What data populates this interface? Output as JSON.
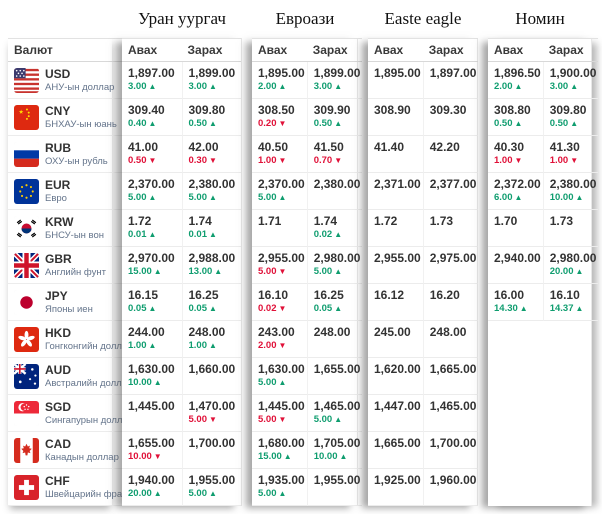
{
  "columns": {
    "currency": "Валют",
    "buy": "Авах",
    "sell": "Зарах"
  },
  "exchanges": [
    {
      "name": "Уран уургач"
    },
    {
      "name": "Евроази"
    },
    {
      "name": "Easte eagle"
    },
    {
      "name": "Номин"
    }
  ],
  "colors": {
    "up": "#0f9d6f",
    "down": "#e01038",
    "price": "#333333"
  },
  "rows": [
    {
      "code": "USD",
      "name": "АНУ-ын доллар",
      "flag": "us",
      "cells": [
        {
          "price": "1,897.00",
          "delta": "3.00",
          "dir": "up"
        },
        {
          "price": "1,899.00",
          "delta": "3.00",
          "dir": "up"
        },
        {
          "price": "1,895.00",
          "delta": "2.00",
          "dir": "up"
        },
        {
          "price": "1,899.00",
          "delta": "3.00",
          "dir": "up"
        },
        {
          "price": "1,895.00"
        },
        {
          "price": "1,897.00"
        },
        {
          "price": "1,896.50",
          "delta": "2.00",
          "dir": "up"
        },
        {
          "price": "1,900.00",
          "delta": "3.00",
          "dir": "up"
        }
      ]
    },
    {
      "code": "CNY",
      "name": "БНХАУ-ын юань",
      "flag": "cn",
      "cells": [
        {
          "price": "309.40",
          "delta": "0.40",
          "dir": "up"
        },
        {
          "price": "309.80",
          "delta": "0.50",
          "dir": "up"
        },
        {
          "price": "308.50",
          "delta": "0.20",
          "dir": "down"
        },
        {
          "price": "309.90",
          "delta": "0.50",
          "dir": "up"
        },
        {
          "price": "308.90"
        },
        {
          "price": "309.30"
        },
        {
          "price": "308.80",
          "delta": "0.50",
          "dir": "up"
        },
        {
          "price": "309.80",
          "delta": "0.50",
          "dir": "up"
        }
      ]
    },
    {
      "code": "RUB",
      "name": "ОХУ-ын рубль",
      "flag": "ru",
      "cells": [
        {
          "price": "41.00",
          "delta": "0.50",
          "dir": "down"
        },
        {
          "price": "42.00",
          "delta": "0.30",
          "dir": "down"
        },
        {
          "price": "40.50",
          "delta": "1.00",
          "dir": "down"
        },
        {
          "price": "41.50",
          "delta": "0.70",
          "dir": "down"
        },
        {
          "price": "41.40"
        },
        {
          "price": "42.20"
        },
        {
          "price": "40.30",
          "delta": "1.00",
          "dir": "down"
        },
        {
          "price": "41.30",
          "delta": "1.00",
          "dir": "down"
        }
      ]
    },
    {
      "code": "EUR",
      "name": "Евро",
      "flag": "eu",
      "cells": [
        {
          "price": "2,370.00",
          "delta": "5.00",
          "dir": "up"
        },
        {
          "price": "2,380.00",
          "delta": "5.00",
          "dir": "up"
        },
        {
          "price": "2,370.00",
          "delta": "5.00",
          "dir": "up"
        },
        {
          "price": "2,380.00"
        },
        {
          "price": "2,371.00"
        },
        {
          "price": "2,377.00"
        },
        {
          "price": "2,372.00",
          "delta": "6.00",
          "dir": "up"
        },
        {
          "price": "2,380.00",
          "delta": "10.00",
          "dir": "up"
        }
      ]
    },
    {
      "code": "KRW",
      "name": "БНСУ-ын вон",
      "flag": "kr",
      "cells": [
        {
          "price": "1.72",
          "delta": "0.01",
          "dir": "up"
        },
        {
          "price": "1.74",
          "delta": "0.01",
          "dir": "up"
        },
        {
          "price": "1.71"
        },
        {
          "price": "1.74",
          "delta": "0.02",
          "dir": "up"
        },
        {
          "price": "1.72"
        },
        {
          "price": "1.73"
        },
        {
          "price": "1.70"
        },
        {
          "price": "1.73"
        }
      ]
    },
    {
      "code": "GBR",
      "name": "Английн фунт",
      "flag": "gb",
      "cells": [
        {
          "price": "2,970.00",
          "delta": "15.00",
          "dir": "up"
        },
        {
          "price": "2,988.00",
          "delta": "13.00",
          "dir": "up"
        },
        {
          "price": "2,955.00",
          "delta": "5.00",
          "dir": "down"
        },
        {
          "price": "2,980.00",
          "delta": "5.00",
          "dir": "up"
        },
        {
          "price": "2,955.00"
        },
        {
          "price": "2,975.00"
        },
        {
          "price": "2,940.00"
        },
        {
          "price": "2,980.00",
          "delta": "20.00",
          "dir": "up"
        }
      ]
    },
    {
      "code": "JPY",
      "name": "Японы иен",
      "flag": "jp",
      "cells": [
        {
          "price": "16.15",
          "delta": "0.05",
          "dir": "up"
        },
        {
          "price": "16.25",
          "delta": "0.05",
          "dir": "up"
        },
        {
          "price": "16.10",
          "delta": "0.02",
          "dir": "down"
        },
        {
          "price": "16.25",
          "delta": "0.05",
          "dir": "up"
        },
        {
          "price": "16.12"
        },
        {
          "price": "16.20"
        },
        {
          "price": "16.00",
          "delta": "14.30",
          "dir": "up"
        },
        {
          "price": "16.10",
          "delta": "14.37",
          "dir": "up"
        }
      ]
    },
    {
      "code": "HKD",
      "name": "Гонгконгийн доллар",
      "flag": "hk",
      "cells": [
        {
          "price": "244.00",
          "delta": "1.00",
          "dir": "up"
        },
        {
          "price": "248.00",
          "delta": "1.00",
          "dir": "up"
        },
        {
          "price": "243.00",
          "delta": "2.00",
          "dir": "down"
        },
        {
          "price": "248.00"
        },
        {
          "price": "245.00"
        },
        {
          "price": "248.00"
        },
        null,
        null
      ]
    },
    {
      "code": "AUD",
      "name": "Австралийн доллар",
      "flag": "au",
      "cells": [
        {
          "price": "1,630.00",
          "delta": "10.00",
          "dir": "up"
        },
        {
          "price": "1,660.00"
        },
        {
          "price": "1,630.00",
          "delta": "5.00",
          "dir": "up"
        },
        {
          "price": "1,655.00"
        },
        {
          "price": "1,620.00"
        },
        {
          "price": "1,665.00"
        },
        null,
        null
      ]
    },
    {
      "code": "SGD",
      "name": "Сингапурын доллар",
      "flag": "sg",
      "cells": [
        {
          "price": "1,445.00"
        },
        {
          "price": "1,470.00",
          "delta": "5.00",
          "dir": "down"
        },
        {
          "price": "1,445.00",
          "delta": "5.00",
          "dir": "down"
        },
        {
          "price": "1,465.00",
          "delta": "5.00",
          "dir": "up"
        },
        {
          "price": "1,447.00"
        },
        {
          "price": "1,465.00"
        },
        null,
        null
      ]
    },
    {
      "code": "CAD",
      "name": "Канадын доллар",
      "flag": "ca",
      "cells": [
        {
          "price": "1,655.00",
          "delta": "10.00",
          "dir": "down"
        },
        {
          "price": "1,700.00"
        },
        {
          "price": "1,680.00",
          "delta": "15.00",
          "dir": "up"
        },
        {
          "price": "1,705.00",
          "delta": "10.00",
          "dir": "up"
        },
        {
          "price": "1,665.00"
        },
        {
          "price": "1,700.00"
        },
        null,
        null
      ]
    },
    {
      "code": "CHF",
      "name": "Швейцарийн франк",
      "flag": "ch",
      "cells": [
        {
          "price": "1,940.00",
          "delta": "20.00",
          "dir": "up"
        },
        {
          "price": "1,955.00",
          "delta": "5.00",
          "dir": "up"
        },
        {
          "price": "1,935.00",
          "delta": "5.00",
          "dir": "up"
        },
        {
          "price": "1,955.00"
        },
        {
          "price": "1,925.00"
        },
        {
          "price": "1,960.00"
        },
        null,
        null
      ]
    }
  ]
}
